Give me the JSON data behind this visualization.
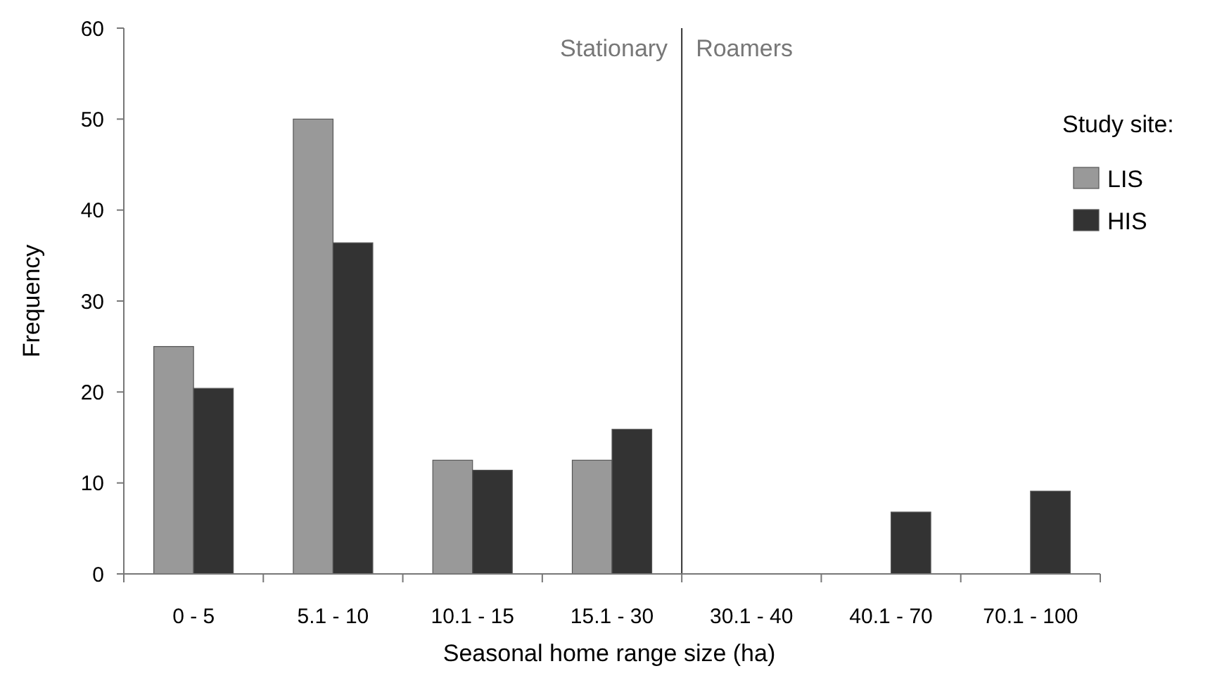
{
  "chart_data": {
    "type": "bar",
    "xlabel": "Seasonal home range size (ha)",
    "ylabel": "Frequency",
    "legend_title": "Study site:",
    "categories": [
      "0 - 5",
      "5.1 - 10",
      "10.1 - 15",
      "15.1 - 30",
      "30.1 - 40",
      "40.1 - 70",
      "70.1 - 100"
    ],
    "series": [
      {
        "name": "LIS",
        "color": "#999999",
        "values": [
          25,
          50,
          12.5,
          12.5,
          0,
          0,
          0
        ]
      },
      {
        "name": "HIS",
        "color": "#333333",
        "values": [
          20.4,
          36.4,
          11.4,
          15.9,
          0,
          6.8,
          9.1
        ]
      }
    ],
    "ylim": [
      0,
      60
    ],
    "yticks": [
      0,
      10,
      20,
      30,
      40,
      50,
      60
    ],
    "grid": false,
    "legend": "right",
    "annotations": [
      "Stationary",
      "Roamers"
    ]
  }
}
